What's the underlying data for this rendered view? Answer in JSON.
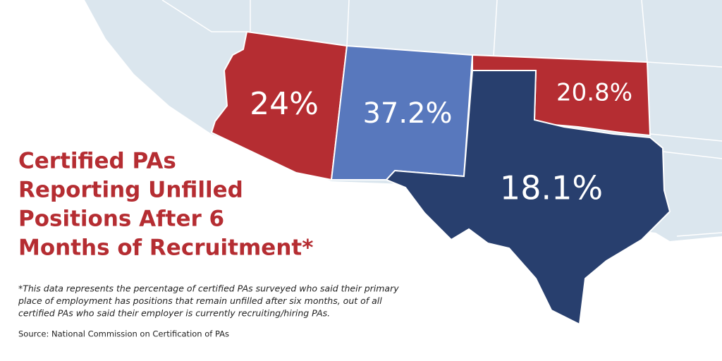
{
  "title_lines": [
    "Certified PAs",
    "Reporting Unfilled",
    "Positions After 6",
    "Months of Recruitment*"
  ],
  "footnote_lines": [
    "*This data represents the percentage of certified PAs surveyed who said their primary",
    "place of employment has positions that remain unfilled after six months, out of all",
    "certified PAs who said their employer is currently recruiting/hiring PAs."
  ],
  "source": "Source: National Commission on Certification of PAs",
  "regions": [
    {
      "label": "24%",
      "color": "#b52d32"
    },
    {
      "label": "37.2%",
      "color": "#5878bd"
    },
    {
      "label": "20.8%",
      "color": "#b52d32"
    },
    {
      "label": "18.1%",
      "color": "#283f6e"
    }
  ]
}
